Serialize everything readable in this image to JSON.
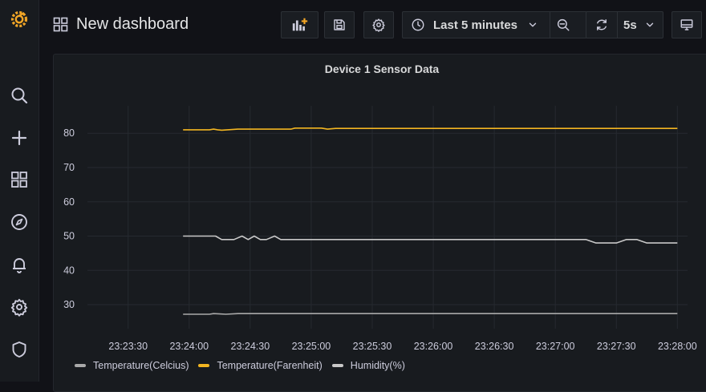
{
  "app": {
    "title": "New dashboard"
  },
  "sidebar": {
    "items": [
      {
        "name": "grafana-logo",
        "icon": "grafana-logo-icon"
      },
      {
        "name": "search",
        "icon": "search-icon"
      },
      {
        "name": "create",
        "icon": "plus-icon"
      },
      {
        "name": "dashboards",
        "icon": "grid-icon"
      },
      {
        "name": "explore",
        "icon": "compass-icon"
      },
      {
        "name": "alerting",
        "icon": "bell-icon"
      },
      {
        "name": "configuration",
        "icon": "gear-icon"
      },
      {
        "name": "server-admin",
        "icon": "shield-icon"
      }
    ]
  },
  "toolbar": {
    "add_panel_icon": "add-panel-icon",
    "save_icon": "save-icon",
    "settings_icon": "gear-icon",
    "time_range_label": "Last 5 minutes",
    "refresh_interval_label": "5s",
    "tv_mode_icon": "monitor-icon"
  },
  "colors": {
    "background": "#111217",
    "panel": "#181b1f",
    "accent_orange": "#f2a626",
    "series_celsius": "#a9a9a9",
    "series_fahrenheit": "#f2b521",
    "series_humidity": "#c8c8c8"
  },
  "panel": {
    "title": "Device 1 Sensor Data"
  },
  "chart_data": {
    "type": "line",
    "title": "Device 1 Sensor Data",
    "xlabel": "",
    "ylabel": "",
    "x_ticks": [
      "23:23:30",
      "23:24:00",
      "23:24:30",
      "23:25:00",
      "23:25:30",
      "23:26:00",
      "23:26:30",
      "23:27:00",
      "23:27:30",
      "23:28:00"
    ],
    "y_ticks": [
      30,
      40,
      50,
      60,
      70,
      80
    ],
    "xlim": [
      "23:23:10",
      "23:28:05"
    ],
    "ylim": [
      23,
      88
    ],
    "grid": true,
    "legend_position": "bottom-left",
    "series": [
      {
        "name": "Temperature(Celcius)",
        "color": "#a9a9a9",
        "x": [
          "23:23:57",
          "23:24:10",
          "23:24:12",
          "23:24:15",
          "23:24:18",
          "23:24:24",
          "23:24:30",
          "23:24:40",
          "23:25:00",
          "23:25:30",
          "23:26:00",
          "23:26:30",
          "23:27:00",
          "23:27:30",
          "23:28:00"
        ],
        "y": [
          27.2,
          27.2,
          27.4,
          27.3,
          27.2,
          27.4,
          27.4,
          27.4,
          27.4,
          27.4,
          27.4,
          27.4,
          27.4,
          27.4,
          27.4
        ]
      },
      {
        "name": "Temperature(Farenheit)",
        "color": "#f2b521",
        "x": [
          "23:23:57",
          "23:24:10",
          "23:24:12",
          "23:24:14",
          "23:24:16",
          "23:24:24",
          "23:24:30",
          "23:24:50",
          "23:24:52",
          "23:25:00",
          "23:25:05",
          "23:25:08",
          "23:25:12",
          "23:25:30",
          "23:26:00",
          "23:26:30",
          "23:27:00",
          "23:27:30",
          "23:28:00"
        ],
        "y": [
          81.0,
          81.0,
          81.2,
          81.0,
          80.9,
          81.2,
          81.2,
          81.2,
          81.5,
          81.5,
          81.5,
          81.2,
          81.4,
          81.4,
          81.4,
          81.4,
          81.4,
          81.4,
          81.4
        ]
      },
      {
        "name": "Humidity(%)",
        "color": "#c8c8c8",
        "x": [
          "23:23:57",
          "23:24:10",
          "23:24:13",
          "23:24:16",
          "23:24:22",
          "23:24:26",
          "23:24:29",
          "23:24:32",
          "23:24:35",
          "23:24:38",
          "23:24:42",
          "23:24:45",
          "23:25:00",
          "23:25:30",
          "23:26:00",
          "23:26:30",
          "23:27:00",
          "23:27:15",
          "23:27:20",
          "23:27:30",
          "23:27:35",
          "23:27:40",
          "23:27:45",
          "23:28:00"
        ],
        "y": [
          50,
          50,
          50,
          49,
          49,
          50,
          49,
          50,
          49,
          49,
          50,
          49,
          49,
          49,
          49,
          49,
          49,
          49,
          48,
          48,
          49,
          49,
          48,
          48
        ]
      }
    ]
  }
}
